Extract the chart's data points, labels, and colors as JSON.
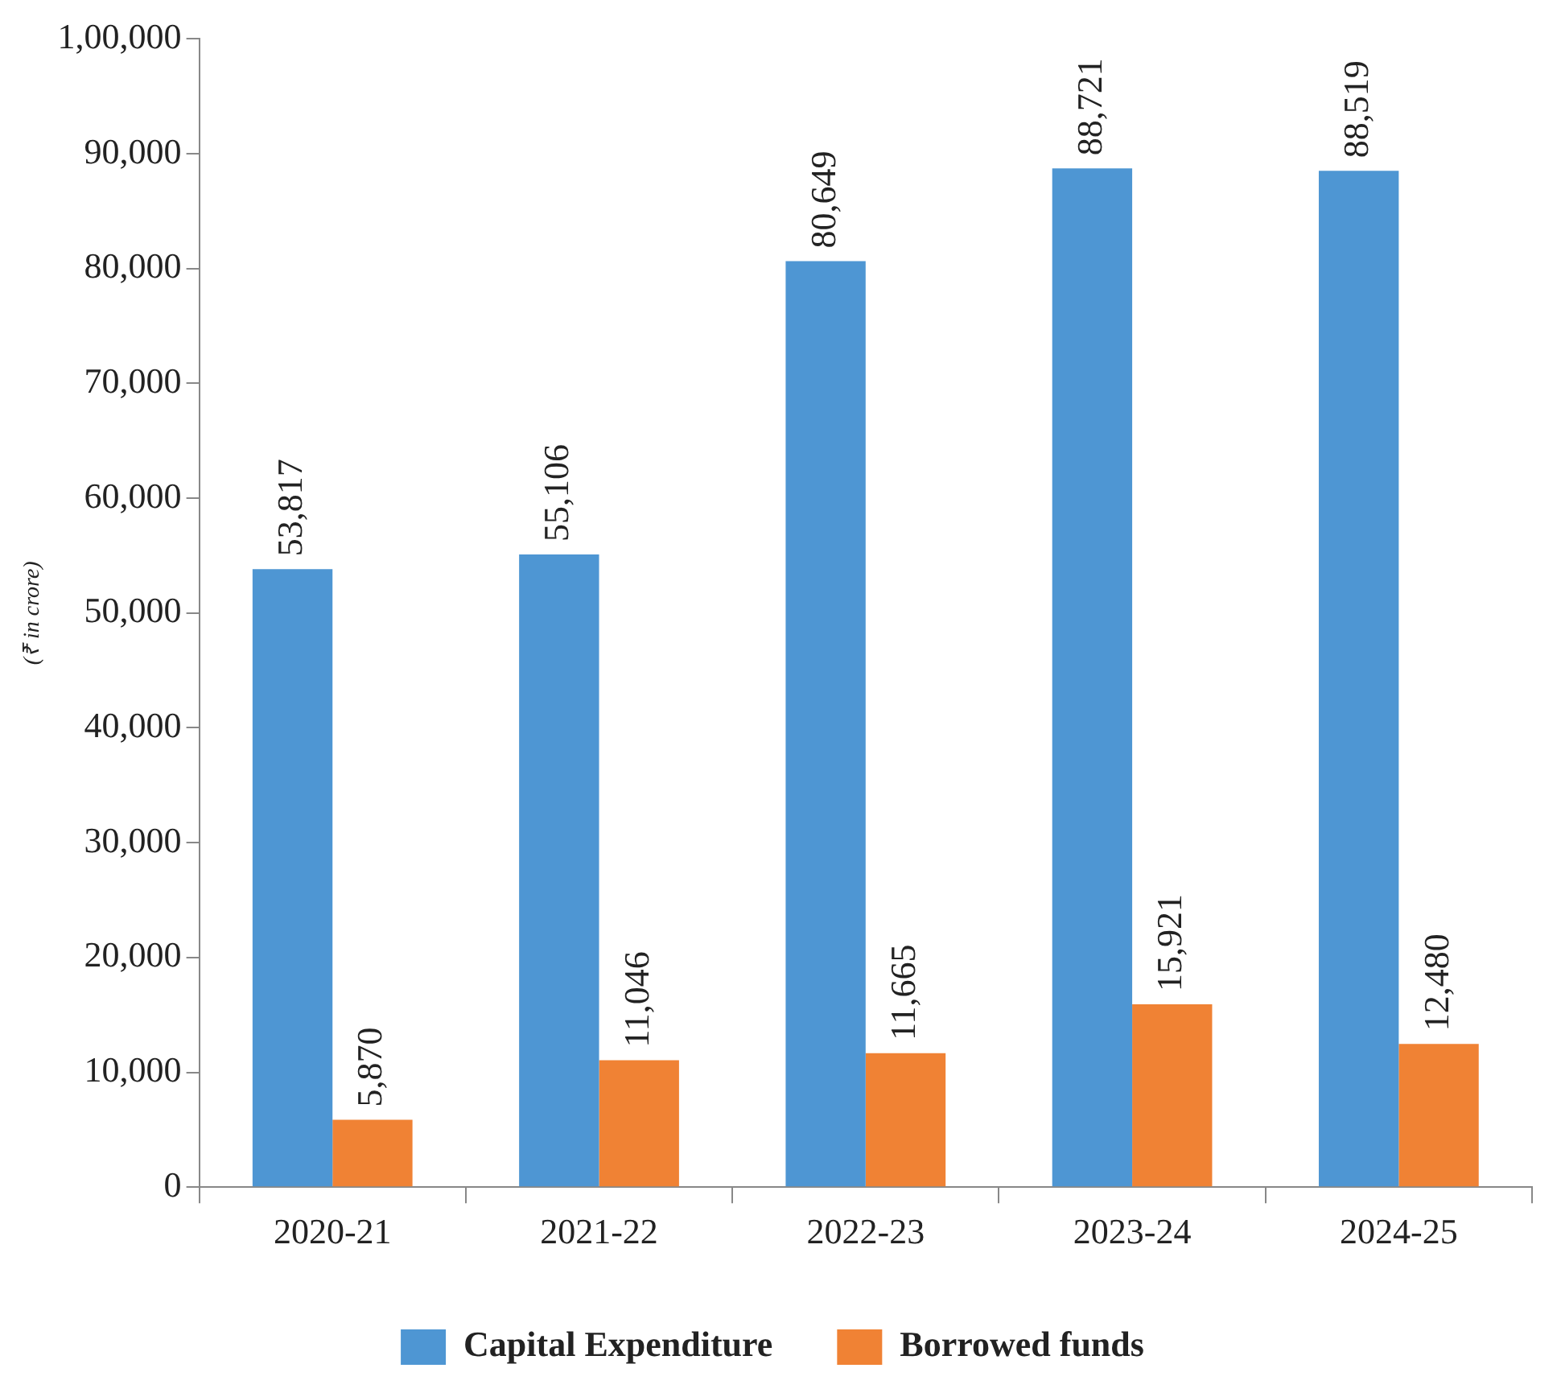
{
  "chart_data": {
    "type": "bar",
    "ylabel": "(₹ in crore)",
    "categories": [
      "2020-21",
      "2021-22",
      "2022-23",
      "2023-24",
      "2024-25"
    ],
    "series": [
      {
        "name": "Capital Expenditure",
        "color": "#4e96d3",
        "values": [
          53817,
          55106,
          80649,
          88721,
          88519
        ],
        "value_labels": [
          "53,817",
          "55,106",
          "80,649",
          "88,721",
          "88,519"
        ]
      },
      {
        "name": "Borrowed funds",
        "color": "#f08234",
        "values": [
          5870,
          11046,
          11665,
          15921,
          12480
        ],
        "value_labels": [
          "5,870",
          "11,046",
          "11,665",
          "15,921",
          "12,480"
        ]
      }
    ],
    "ylim": [
      0,
      100000
    ],
    "yticks": [
      0,
      {
        "value": 10000,
        "label": "10,000"
      },
      {
        "value": 20000,
        "label": "20,000"
      },
      {
        "value": 30000,
        "label": "30,000"
      },
      {
        "value": 40000,
        "label": "40,000"
      },
      {
        "value": 50000,
        "label": "50,000"
      },
      {
        "value": 60000,
        "label": "60,000"
      },
      {
        "value": 70000,
        "label": "70,000"
      },
      {
        "value": 80000,
        "label": "80,000"
      },
      {
        "value": 90000,
        "label": "90,000"
      },
      {
        "value": 100000,
        "label": "1,00,000"
      }
    ],
    "grid": false,
    "legend": "bottom"
  }
}
